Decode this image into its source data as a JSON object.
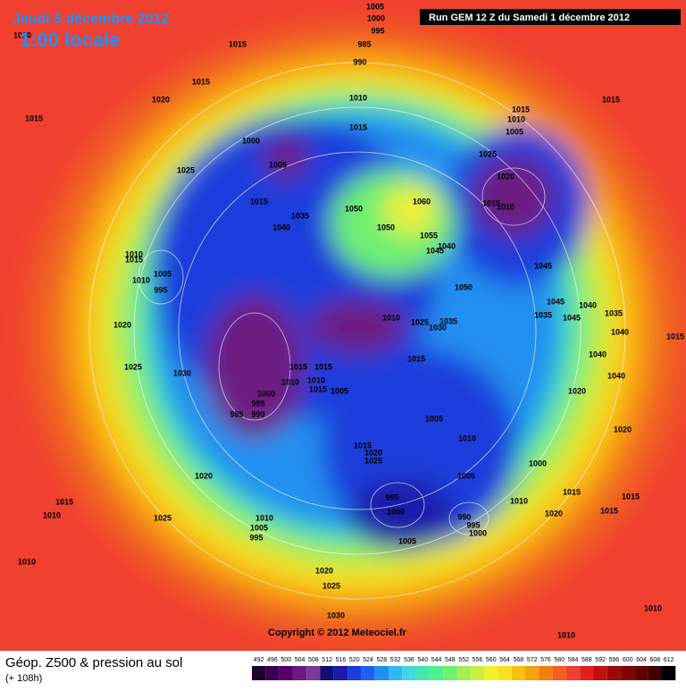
{
  "header": {
    "date": "Jeudi 6 décembre 2012",
    "time": "1:00 locale",
    "run": "Run GEM 12 Z du Samedi 1 décembre 2012"
  },
  "footer": {
    "title": "Géop. Z500 & pression au sol",
    "lead": "(+ 108h)"
  },
  "copyright": "Copyright © 2012 Meteociel.fr",
  "pressure_labels": [
    1010,
    1005,
    1000,
    995,
    985,
    990,
    1015,
    1015,
    1020,
    1015,
    1010,
    1015,
    1000,
    1005,
    1025,
    1015,
    1035,
    1040,
    1050,
    1060,
    1050,
    1055,
    1040,
    1045,
    1020,
    1015,
    1010,
    1025,
    1015,
    1010,
    1005,
    1015,
    1045,
    1050,
    1045,
    1040,
    1035,
    1045,
    1035,
    1015,
    1040,
    1010,
    1015,
    1005,
    1010,
    995,
    1020,
    1025,
    1030,
    1010,
    1025,
    1035,
    1030,
    1015,
    1015,
    1015,
    1010,
    1010,
    1015,
    1005,
    1000,
    995,
    985,
    990,
    1020,
    1040,
    1040,
    1005,
    1010,
    1015,
    1020,
    1025,
    1000,
    1020,
    1005,
    995,
    1000,
    990,
    995,
    1000,
    1010,
    1015,
    1020,
    1015,
    1015,
    1020,
    1015,
    1010,
    1025,
    1010,
    1005,
    995,
    1005,
    1010,
    1020,
    1025,
    1030,
    1010,
    1010
  ],
  "legend": {
    "values": [
      492,
      496,
      500,
      504,
      508,
      512,
      516,
      520,
      524,
      528,
      532,
      536,
      540,
      544,
      548,
      552,
      556,
      560,
      564,
      568,
      572,
      576,
      580,
      584,
      588,
      592,
      596,
      600,
      604,
      608,
      612
    ],
    "colors": [
      "#200030",
      "#3b0050",
      "#550068",
      "#6d1a80",
      "#7a3a9a",
      "#101070",
      "#1a1aa8",
      "#1e3cdc",
      "#2060f0",
      "#2090f0",
      "#30b8f0",
      "#40d8e0",
      "#40e8b0",
      "#50f090",
      "#70f070",
      "#a0f050",
      "#c8f040",
      "#f0f030",
      "#f8e020",
      "#f8c010",
      "#f8a010",
      "#f08010",
      "#f06020",
      "#f04030",
      "#e02020",
      "#c01010",
      "#a00808",
      "#800000",
      "#600000",
      "#400000",
      "#000000"
    ]
  }
}
